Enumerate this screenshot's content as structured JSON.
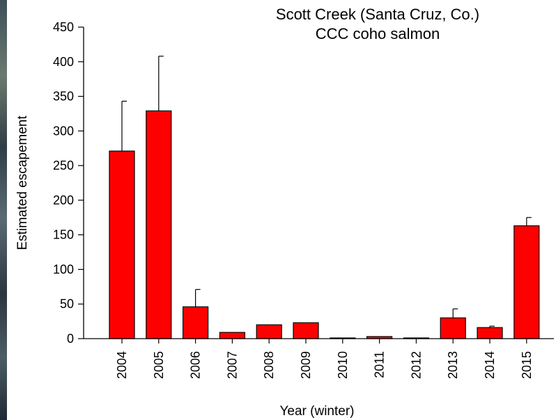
{
  "chart_data": {
    "type": "bar",
    "title": [
      "Scott Creek (Santa Cruz, Co.)",
      "CCC coho salmon"
    ],
    "xlabel": "Year (winter)",
    "ylabel": "Estimated escapement",
    "categories": [
      "2004",
      "2005",
      "2006",
      "2007",
      "2008",
      "2009",
      "2010",
      "2011",
      "2012",
      "2013",
      "2014",
      "2015"
    ],
    "values": [
      271,
      329,
      46,
      9,
      20,
      23,
      1,
      3,
      1,
      30,
      16,
      163
    ],
    "error_upper": [
      343,
      408,
      71,
      null,
      null,
      null,
      null,
      null,
      null,
      43,
      18,
      175
    ],
    "ylim": [
      0,
      450
    ],
    "yticks": [
      0,
      50,
      100,
      150,
      200,
      250,
      300,
      350,
      400,
      450
    ],
    "grid": false,
    "legend": "none",
    "colors": {
      "bar_fill": "#ff0000",
      "bar_stroke": "#000000"
    }
  }
}
